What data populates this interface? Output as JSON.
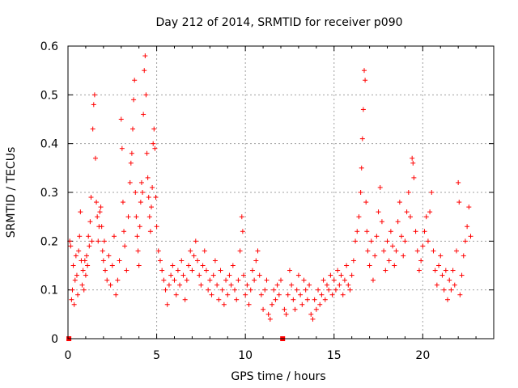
{
  "chart_data": {
    "type": "scatter",
    "title": "Day 212 of 2014, SRMTID for receiver p090",
    "xlabel": "GPS time / hours",
    "ylabel": "SRMTID / TECUs",
    "xlim": [
      0,
      24
    ],
    "ylim": [
      0,
      0.6
    ],
    "x_ticks": [
      0,
      5,
      10,
      15,
      20
    ],
    "x_tick_labels": [
      "0",
      "5",
      "10",
      "15",
      "20"
    ],
    "y_ticks": [
      0,
      0.1,
      0.2,
      0.3,
      0.4,
      0.5,
      0.6
    ],
    "y_tick_labels": [
      "0",
      "0.1",
      "0.2",
      "0.3",
      "0.4",
      "0.5",
      "0.6"
    ],
    "grid": true,
    "marker": "plus",
    "color": "#ff0000",
    "zero_points": [
      0.05,
      12.1
    ],
    "series": [
      {
        "name": "SRMTID",
        "points": [
          [
            0.1,
            0.2
          ],
          [
            0.15,
            0.19
          ],
          [
            0.2,
            0.08
          ],
          [
            0.25,
            0.1
          ],
          [
            0.3,
            0.15
          ],
          [
            0.35,
            0.07
          ],
          [
            0.4,
            0.12
          ],
          [
            0.45,
            0.17
          ],
          [
            0.5,
            0.13
          ],
          [
            0.55,
            0.09
          ],
          [
            0.6,
            0.18
          ],
          [
            0.65,
            0.21
          ],
          [
            0.7,
            0.26
          ],
          [
            0.75,
            0.16
          ],
          [
            0.8,
            0.11
          ],
          [
            0.85,
            0.14
          ],
          [
            0.9,
            0.1
          ],
          [
            0.95,
            0.16
          ],
          [
            1.0,
            0.13
          ],
          [
            1.05,
            0.17
          ],
          [
            1.1,
            0.15
          ],
          [
            1.15,
            0.21
          ],
          [
            1.2,
            0.19
          ],
          [
            1.25,
            0.24
          ],
          [
            1.3,
            0.29
          ],
          [
            1.35,
            0.2
          ],
          [
            1.4,
            0.43
          ],
          [
            1.45,
            0.48
          ],
          [
            1.5,
            0.5
          ],
          [
            1.55,
            0.37
          ],
          [
            1.6,
            0.28
          ],
          [
            1.65,
            0.25
          ],
          [
            1.7,
            0.2
          ],
          [
            1.75,
            0.23
          ],
          [
            1.8,
            0.26
          ],
          [
            1.85,
            0.27
          ],
          [
            1.9,
            0.23
          ],
          [
            1.95,
            0.18
          ],
          [
            2.0,
            0.16
          ],
          [
            2.05,
            0.2
          ],
          [
            2.1,
            0.14
          ],
          [
            2.2,
            0.12
          ],
          [
            2.3,
            0.17
          ],
          [
            2.4,
            0.11
          ],
          [
            2.5,
            0.15
          ],
          [
            2.6,
            0.21
          ],
          [
            2.7,
            0.09
          ],
          [
            2.8,
            0.12
          ],
          [
            2.9,
            0.16
          ],
          [
            3.0,
            0.45
          ],
          [
            3.05,
            0.39
          ],
          [
            3.1,
            0.28
          ],
          [
            3.15,
            0.22
          ],
          [
            3.2,
            0.19
          ],
          [
            3.3,
            0.14
          ],
          [
            3.4,
            0.25
          ],
          [
            3.5,
            0.32
          ],
          [
            3.55,
            0.36
          ],
          [
            3.6,
            0.38
          ],
          [
            3.65,
            0.43
          ],
          [
            3.7,
            0.49
          ],
          [
            3.75,
            0.53
          ],
          [
            3.8,
            0.3
          ],
          [
            3.85,
            0.25
          ],
          [
            3.9,
            0.21
          ],
          [
            3.95,
            0.18
          ],
          [
            4.0,
            0.15
          ],
          [
            4.05,
            0.23
          ],
          [
            4.1,
            0.28
          ],
          [
            4.15,
            0.32
          ],
          [
            4.2,
            0.3
          ],
          [
            4.25,
            0.46
          ],
          [
            4.3,
            0.55
          ],
          [
            4.35,
            0.58
          ],
          [
            4.4,
            0.5
          ],
          [
            4.45,
            0.38
          ],
          [
            4.5,
            0.33
          ],
          [
            4.55,
            0.29
          ],
          [
            4.6,
            0.25
          ],
          [
            4.65,
            0.22
          ],
          [
            4.7,
            0.27
          ],
          [
            4.75,
            0.31
          ],
          [
            4.8,
            0.4
          ],
          [
            4.85,
            0.43
          ],
          [
            4.9,
            0.39
          ],
          [
            4.95,
            0.29
          ],
          [
            5.0,
            0.23
          ],
          [
            5.1,
            0.18
          ],
          [
            5.2,
            0.16
          ],
          [
            5.3,
            0.14
          ],
          [
            5.4,
            0.12
          ],
          [
            5.5,
            0.1
          ],
          [
            5.6,
            0.07
          ],
          [
            5.7,
            0.11
          ],
          [
            5.8,
            0.13
          ],
          [
            5.9,
            0.15
          ],
          [
            6.0,
            0.12
          ],
          [
            6.1,
            0.09
          ],
          [
            6.2,
            0.14
          ],
          [
            6.3,
            0.11
          ],
          [
            6.4,
            0.16
          ],
          [
            6.5,
            0.13
          ],
          [
            6.6,
            0.08
          ],
          [
            6.7,
            0.12
          ],
          [
            6.8,
            0.15
          ],
          [
            6.9,
            0.18
          ],
          [
            7.0,
            0.14
          ],
          [
            7.1,
            0.17
          ],
          [
            7.2,
            0.2
          ],
          [
            7.3,
            0.16
          ],
          [
            7.4,
            0.13
          ],
          [
            7.5,
            0.11
          ],
          [
            7.6,
            0.15
          ],
          [
            7.7,
            0.18
          ],
          [
            7.8,
            0.14
          ],
          [
            7.9,
            0.1
          ],
          [
            8.0,
            0.12
          ],
          [
            8.1,
            0.09
          ],
          [
            8.2,
            0.13
          ],
          [
            8.3,
            0.16
          ],
          [
            8.4,
            0.11
          ],
          [
            8.5,
            0.08
          ],
          [
            8.6,
            0.14
          ],
          [
            8.7,
            0.1
          ],
          [
            8.8,
            0.07
          ],
          [
            8.9,
            0.12
          ],
          [
            9.0,
            0.09
          ],
          [
            9.1,
            0.13
          ],
          [
            9.2,
            0.11
          ],
          [
            9.3,
            0.15
          ],
          [
            9.4,
            0.1
          ],
          [
            9.5,
            0.08
          ],
          [
            9.6,
            0.12
          ],
          [
            9.7,
            0.18
          ],
          [
            9.8,
            0.25
          ],
          [
            9.85,
            0.22
          ],
          [
            9.9,
            0.13
          ],
          [
            10.0,
            0.09
          ],
          [
            10.1,
            0.11
          ],
          [
            10.2,
            0.07
          ],
          [
            10.3,
            0.1
          ],
          [
            10.4,
            0.14
          ],
          [
            10.5,
            0.12
          ],
          [
            10.6,
            0.16
          ],
          [
            10.7,
            0.18
          ],
          [
            10.8,
            0.13
          ],
          [
            10.9,
            0.09
          ],
          [
            11.0,
            0.06
          ],
          [
            11.1,
            0.1
          ],
          [
            11.2,
            0.12
          ],
          [
            11.3,
            0.05
          ],
          [
            11.4,
            0.04
          ],
          [
            11.5,
            0.07
          ],
          [
            11.6,
            0.1
          ],
          [
            11.7,
            0.08
          ],
          [
            11.8,
            0.11
          ],
          [
            11.9,
            0.09
          ],
          [
            12.0,
            0.12
          ],
          [
            12.2,
            0.06
          ],
          [
            12.3,
            0.05
          ],
          [
            12.4,
            0.09
          ],
          [
            12.5,
            0.14
          ],
          [
            12.6,
            0.11
          ],
          [
            12.7,
            0.08
          ],
          [
            12.8,
            0.06
          ],
          [
            12.9,
            0.1
          ],
          [
            13.0,
            0.13
          ],
          [
            13.1,
            0.09
          ],
          [
            13.2,
            0.07
          ],
          [
            13.3,
            0.12
          ],
          [
            13.4,
            0.1
          ],
          [
            13.5,
            0.08
          ],
          [
            13.6,
            0.11
          ],
          [
            13.7,
            0.05
          ],
          [
            13.8,
            0.04
          ],
          [
            13.9,
            0.08
          ],
          [
            14.0,
            0.06
          ],
          [
            14.1,
            0.1
          ],
          [
            14.2,
            0.07
          ],
          [
            14.3,
            0.09
          ],
          [
            14.4,
            0.12
          ],
          [
            14.5,
            0.08
          ],
          [
            14.6,
            0.11
          ],
          [
            14.7,
            0.1
          ],
          [
            14.8,
            0.13
          ],
          [
            14.9,
            0.09
          ],
          [
            15.0,
            0.12
          ],
          [
            15.1,
            0.1
          ],
          [
            15.2,
            0.14
          ],
          [
            15.3,
            0.11
          ],
          [
            15.4,
            0.13
          ],
          [
            15.5,
            0.09
          ],
          [
            15.6,
            0.12
          ],
          [
            15.7,
            0.15
          ],
          [
            15.8,
            0.11
          ],
          [
            15.9,
            0.1
          ],
          [
            16.0,
            0.13
          ],
          [
            16.1,
            0.16
          ],
          [
            16.2,
            0.2
          ],
          [
            16.3,
            0.22
          ],
          [
            16.4,
            0.25
          ],
          [
            16.5,
            0.3
          ],
          [
            16.55,
            0.35
          ],
          [
            16.6,
            0.41
          ],
          [
            16.65,
            0.47
          ],
          [
            16.7,
            0.55
          ],
          [
            16.75,
            0.53
          ],
          [
            16.8,
            0.28
          ],
          [
            16.85,
            0.22
          ],
          [
            16.9,
            0.18
          ],
          [
            17.0,
            0.15
          ],
          [
            17.1,
            0.2
          ],
          [
            17.2,
            0.12
          ],
          [
            17.3,
            0.17
          ],
          [
            17.4,
            0.21
          ],
          [
            17.5,
            0.26
          ],
          [
            17.6,
            0.31
          ],
          [
            17.7,
            0.24
          ],
          [
            17.8,
            0.18
          ],
          [
            17.9,
            0.14
          ],
          [
            18.0,
            0.2
          ],
          [
            18.1,
            0.16
          ],
          [
            18.2,
            0.22
          ],
          [
            18.3,
            0.19
          ],
          [
            18.4,
            0.15
          ],
          [
            18.5,
            0.18
          ],
          [
            18.6,
            0.24
          ],
          [
            18.7,
            0.28
          ],
          [
            18.8,
            0.21
          ],
          [
            18.9,
            0.17
          ],
          [
            19.0,
            0.2
          ],
          [
            19.1,
            0.26
          ],
          [
            19.2,
            0.3
          ],
          [
            19.3,
            0.25
          ],
          [
            19.4,
            0.37
          ],
          [
            19.45,
            0.36
          ],
          [
            19.5,
            0.33
          ],
          [
            19.6,
            0.22
          ],
          [
            19.7,
            0.18
          ],
          [
            19.8,
            0.14
          ],
          [
            19.9,
            0.16
          ],
          [
            20.0,
            0.19
          ],
          [
            20.1,
            0.22
          ],
          [
            20.2,
            0.25
          ],
          [
            20.3,
            0.2
          ],
          [
            20.4,
            0.26
          ],
          [
            20.5,
            0.3
          ],
          [
            20.6,
            0.18
          ],
          [
            20.7,
            0.14
          ],
          [
            20.8,
            0.11
          ],
          [
            20.9,
            0.15
          ],
          [
            21.0,
            0.17
          ],
          [
            21.1,
            0.13
          ],
          [
            21.2,
            0.1
          ],
          [
            21.3,
            0.14
          ],
          [
            21.4,
            0.08
          ],
          [
            21.5,
            0.12
          ],
          [
            21.6,
            0.1
          ],
          [
            21.7,
            0.14
          ],
          [
            21.8,
            0.11
          ],
          [
            21.9,
            0.18
          ],
          [
            22.0,
            0.32
          ],
          [
            22.05,
            0.28
          ],
          [
            22.1,
            0.09
          ],
          [
            22.2,
            0.13
          ],
          [
            22.3,
            0.17
          ],
          [
            22.4,
            0.2
          ],
          [
            22.5,
            0.23
          ],
          [
            22.6,
            0.27
          ],
          [
            22.7,
            0.21
          ]
        ]
      }
    ]
  }
}
